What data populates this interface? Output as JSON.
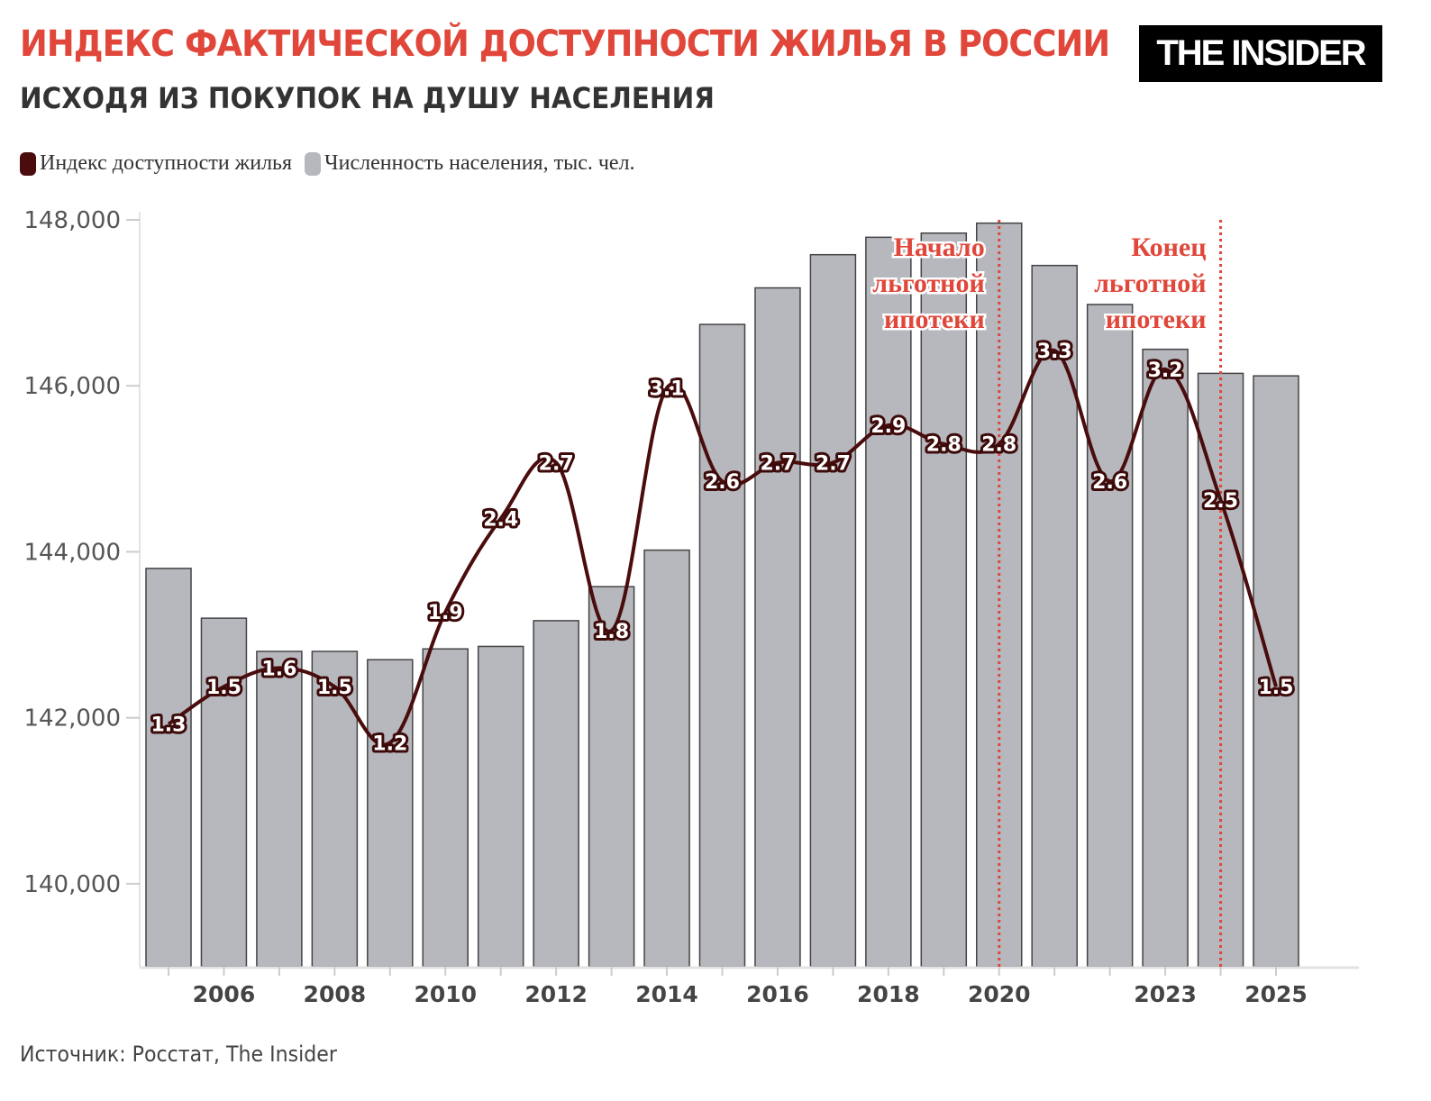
{
  "header": {
    "title": "ИНДЕКС ФАКТИЧЕСКОЙ ДОСТУПНОСТИ ЖИЛЬЯ В РОССИИ",
    "subtitle": "ИСХОДЯ ИЗ ПОКУПОК НА ДУШУ НАСЕЛЕНИЯ",
    "logo": "THE INSIDER"
  },
  "source": "Источник: Росстат, The Insider",
  "colors": {
    "title": "#e0473a",
    "line": "#4a0c0c",
    "bars": "#b6b8bd",
    "bar_border": "#444444",
    "annotation": "#e0473a"
  },
  "chart_data": {
    "type": "bar+line",
    "legend": [
      {
        "label": "Индекс доступности жилья",
        "color": "#4a0c0c"
      },
      {
        "label": "Численность населения, тыс. чел.",
        "color": "#b6b8bd"
      }
    ],
    "legend_position": "top-left",
    "x": [
      2005,
      2006,
      2007,
      2008,
      2009,
      2010,
      2011,
      2012,
      2013,
      2014,
      2015,
      2016,
      2017,
      2018,
      2019,
      2020,
      2021,
      2022,
      2023,
      2024,
      2025
    ],
    "x_tick_labels": [
      "2006",
      "2008",
      "2010",
      "2012",
      "2014",
      "2016",
      "2018",
      "2020",
      "2023",
      "2025"
    ],
    "y_ticks": [
      "140,000",
      "142,000",
      "144,000",
      "146,000",
      "148,000"
    ],
    "ylim": [
      139000,
      148000
    ],
    "series": [
      {
        "name": "Численность населения, тыс. чел.",
        "type": "bar",
        "values": [
          143800,
          143200,
          142800,
          142800,
          142700,
          142830,
          142860,
          143170,
          143580,
          144020,
          146740,
          147180,
          147580,
          147790,
          147840,
          147960,
          147450,
          146980,
          146440,
          146150,
          146120
        ]
      },
      {
        "name": "Индекс доступности жилья",
        "type": "line",
        "ylim": [
          0,
          4
        ],
        "values": [
          1.3,
          1.5,
          1.6,
          1.5,
          1.2,
          1.9,
          2.4,
          2.7,
          1.8,
          3.1,
          2.6,
          2.7,
          2.7,
          2.9,
          2.8,
          2.8,
          3.3,
          2.6,
          3.2,
          2.5,
          1.5
        ],
        "labels": [
          "1.3",
          "1.5",
          "1.6",
          "1.5",
          "1.2",
          "1.9",
          "2.4",
          "2.7",
          "1.8",
          "3.1",
          "2.6",
          "2.7",
          "2.7",
          "2.9",
          "2.8",
          "2.8",
          "3.3",
          "2.6",
          "3.2",
          "2.5",
          "1.5"
        ]
      }
    ],
    "annotations": [
      {
        "x": 2020,
        "lines": [
          "Начало",
          "льготной",
          "ипотеки"
        ]
      },
      {
        "x": 2024,
        "lines": [
          "Конец",
          "льготной",
          "ипотеки"
        ]
      }
    ],
    "grid": false
  }
}
